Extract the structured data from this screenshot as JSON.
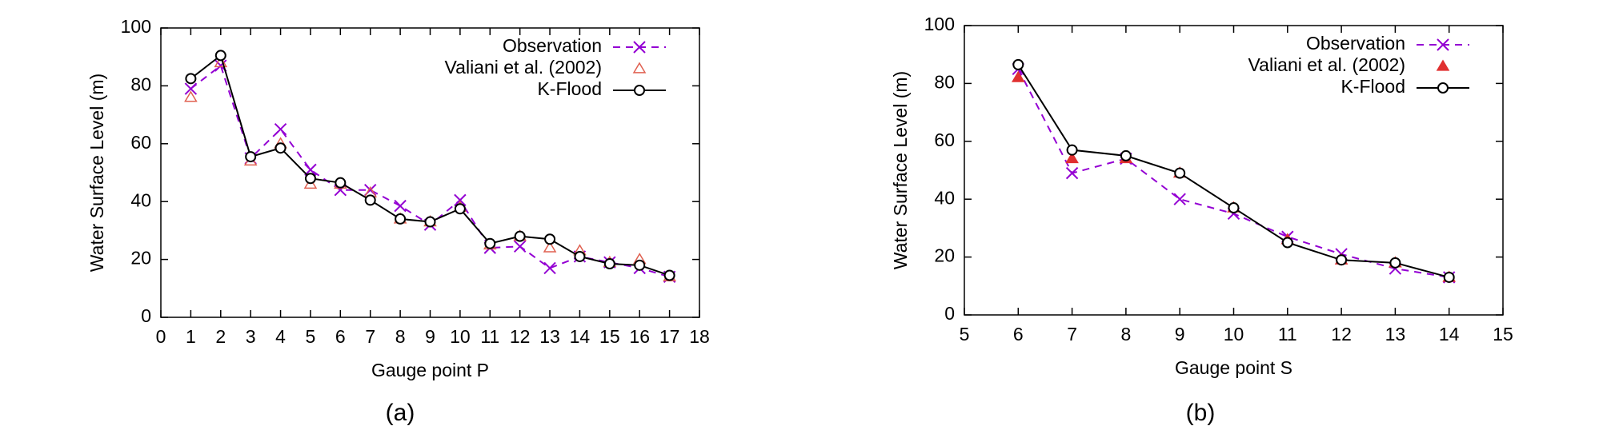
{
  "chart_data": [
    {
      "type": "line",
      "xlabel": "Gauge point P",
      "ylabel": "Water Surface Level (m)",
      "caption": "(a)",
      "x": [
        1,
        2,
        3,
        4,
        5,
        6,
        7,
        8,
        9,
        10,
        11,
        12,
        13,
        14,
        15,
        16,
        17
      ],
      "xlim": [
        0,
        18
      ],
      "xticks": [
        0,
        1,
        2,
        3,
        4,
        5,
        6,
        7,
        8,
        9,
        10,
        11,
        12,
        13,
        14,
        15,
        16,
        17,
        18
      ],
      "ylim": [
        0,
        100
      ],
      "yticks": [
        0,
        20,
        40,
        60,
        80,
        100
      ],
      "legend": "upper right",
      "series": [
        {
          "name": "Observation",
          "color": "#9400d3",
          "linestyle": "dashed",
          "marker": "x",
          "values": [
            79,
            87,
            55,
            65,
            51,
            44,
            44,
            38.5,
            32,
            40.5,
            24,
            24.5,
            17,
            21,
            19,
            17,
            14
          ]
        },
        {
          "name": "Valiani et al. (2002)",
          "color": "#e06050",
          "linestyle": "none",
          "marker": "triangle",
          "marker_filled": false,
          "values": [
            76,
            88,
            54,
            60,
            46,
            46,
            43,
            34,
            33,
            38,
            25,
            28,
            24,
            23,
            19,
            20,
            14
          ]
        },
        {
          "name": "K-Flood",
          "color": "#000000",
          "linestyle": "solid",
          "marker": "circle",
          "values": [
            82.5,
            90.5,
            55.5,
            58.5,
            48,
            46.5,
            40.5,
            34,
            33,
            37.5,
            25.5,
            28,
            27,
            21,
            18.5,
            18,
            14.5
          ]
        }
      ]
    },
    {
      "type": "line",
      "xlabel": "Gauge point S",
      "ylabel": "Water Surface Level (m)",
      "caption": "(b)",
      "x": [
        6,
        7,
        8,
        9,
        10,
        11,
        12,
        13,
        14
      ],
      "xlim": [
        5,
        15
      ],
      "xticks": [
        5,
        6,
        7,
        8,
        9,
        10,
        11,
        12,
        13,
        14,
        15
      ],
      "ylim": [
        0,
        100
      ],
      "yticks": [
        0,
        20,
        40,
        60,
        80,
        100
      ],
      "legend": "upper right",
      "series": [
        {
          "name": "Observation",
          "color": "#9400d3",
          "linestyle": "dashed",
          "marker": "x",
          "values": [
            85,
            49,
            54,
            40,
            35,
            27,
            21,
            16,
            13
          ]
        },
        {
          "name": "Valiani et al. (2002)",
          "color": "#e03030",
          "linestyle": "none",
          "marker": "triangle",
          "marker_filled": true,
          "values": [
            82,
            54,
            54,
            49,
            37,
            26,
            19,
            18,
            13
          ]
        },
        {
          "name": "K-Flood",
          "color": "#000000",
          "linestyle": "solid",
          "marker": "circle",
          "values": [
            86.5,
            57,
            55,
            49,
            37,
            25,
            19,
            18,
            13
          ]
        }
      ]
    }
  ]
}
